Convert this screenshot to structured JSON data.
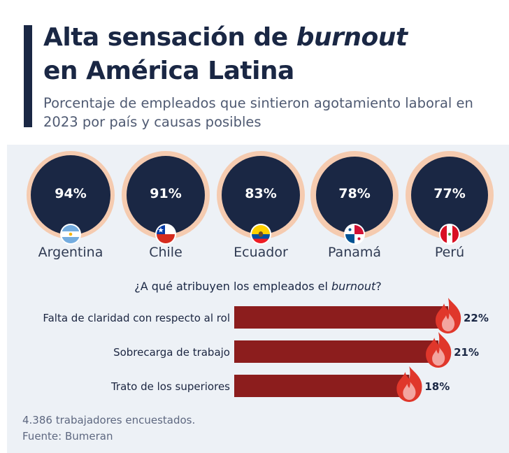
{
  "title": {
    "prefix": "Alta sensación de ",
    "emphasis": "burnout",
    "line2": "en América Latina"
  },
  "subtitle": "Porcentaje de empleados que sintieron agotamiento laboral en 2023 por país y causas posibles",
  "countries": [
    {
      "name": "Argentina",
      "value": 94,
      "label": "94%",
      "flag": "argentina-flag"
    },
    {
      "name": "Chile",
      "value": 91,
      "label": "91%",
      "flag": "chile-flag"
    },
    {
      "name": "Ecuador",
      "value": 83,
      "label": "83%",
      "flag": "ecuador-flag"
    },
    {
      "name": "Panamá",
      "value": 78,
      "label": "78%",
      "flag": "panama-flag"
    },
    {
      "name": "Perú",
      "value": 77,
      "label": "77%",
      "flag": "peru-flag"
    }
  ],
  "question": {
    "prefix": "¿A qué atribuyen los empleados el ",
    "emphasis": "burnout",
    "suffix": "?"
  },
  "chart_data": {
    "type": "bar",
    "orientation": "horizontal",
    "categories": [
      "Falta de claridad con respecto al rol",
      "Sobrecarga de trabajo",
      "Trato de los superiores"
    ],
    "values": [
      22,
      21,
      18
    ],
    "value_labels": [
      "22%",
      "21%",
      "18%"
    ],
    "bar_color": "#8c1d1d",
    "marker_icon": "flame-icon"
  },
  "colors": {
    "dark_navy": "#1a2744",
    "ring_peach": "#f5cbb0",
    "bar_red": "#8c1d1d",
    "flame_red": "#e0372b",
    "panel_bg": "#edf1f6"
  },
  "footer": {
    "note": "4.386 trabajadores encuestados.",
    "source": "Fuente: Bumeran"
  }
}
